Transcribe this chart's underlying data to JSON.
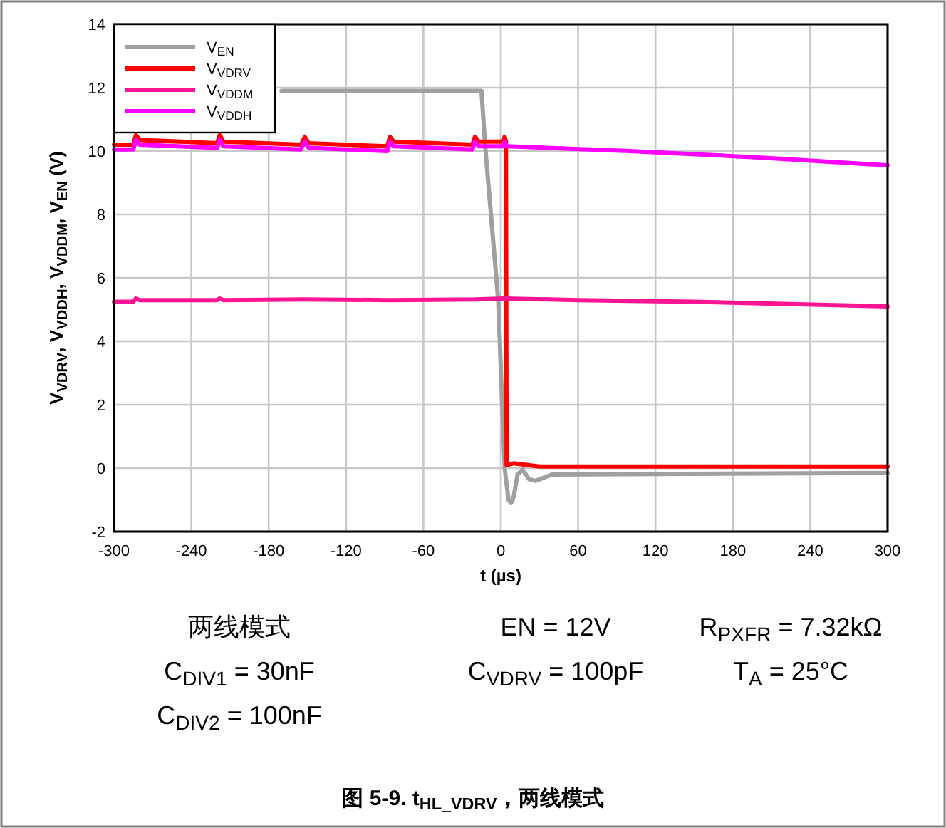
{
  "chart_data": {
    "type": "line",
    "xlabel": "t (µs)",
    "ylabel": "V$_{VDRV}$, V$_{VDDH}$, V$_{VDDM}$, V$_{EN}$ (V)",
    "xlim": [
      -300,
      300
    ],
    "ylim": [
      -2,
      14
    ],
    "xticks": [
      -300,
      -240,
      -180,
      -120,
      -60,
      0,
      60,
      120,
      180,
      240,
      300
    ],
    "yticks": [
      -2,
      0,
      2,
      4,
      6,
      8,
      10,
      12,
      14
    ],
    "grid": true,
    "legend": "top left",
    "marker": "none",
    "line_style": "solid",
    "series": [
      {
        "name": "V$_{EN}$",
        "color": "#a0a0a0",
        "x": [
          -170,
          -15,
          -12,
          -2,
          3,
          6,
          8,
          10,
          13,
          17,
          22,
          27,
          40,
          300
        ],
        "values": [
          11.9,
          11.9,
          10.1,
          5.3,
          0,
          -1.0,
          -1.1,
          -0.9,
          -0.2,
          -0.05,
          -0.35,
          -0.4,
          -0.2,
          -0.15
        ]
      },
      {
        "name": "V$_{VDRV}$",
        "color": "#ff0000",
        "x": [
          -300,
          -285,
          -283,
          -280,
          -220,
          -218,
          -215,
          -155,
          -152,
          -149,
          -88,
          -86,
          -83,
          -22,
          -20,
          -17,
          2,
          3,
          4,
          4.5,
          10,
          30,
          300
        ],
        "values": [
          10.2,
          10.2,
          10.5,
          10.35,
          10.25,
          10.5,
          10.3,
          10.2,
          10.45,
          10.25,
          10.15,
          10.45,
          10.3,
          10.2,
          10.45,
          10.3,
          10.3,
          10.45,
          10.3,
          0.1,
          0.15,
          0.05,
          0.05
        ]
      },
      {
        "name": "V$_{VDDM}$",
        "color": "#ff1493",
        "x": [
          -300,
          -285,
          -283,
          -280,
          -220,
          -218,
          -215,
          -152,
          -86,
          -20,
          3,
          60,
          150,
          300
        ],
        "values": [
          5.25,
          5.25,
          5.35,
          5.3,
          5.3,
          5.35,
          5.3,
          5.32,
          5.3,
          5.32,
          5.35,
          5.3,
          5.25,
          5.1
        ]
      },
      {
        "name": "V$_{VDDH}$",
        "color": "#ff00ff",
        "x": [
          -300,
          -285,
          -283,
          -280,
          -220,
          -218,
          -215,
          -155,
          -152,
          -149,
          -88,
          -86,
          -83,
          -22,
          -20,
          -17,
          2,
          3,
          5,
          100,
          200,
          300
        ],
        "values": [
          10.05,
          10.05,
          10.35,
          10.2,
          10.1,
          10.35,
          10.15,
          10.05,
          10.3,
          10.1,
          10.0,
          10.3,
          10.15,
          10.05,
          10.3,
          10.15,
          10.15,
          10.3,
          10.15,
          10.0,
          9.8,
          9.55
        ]
      }
    ],
    "annotations": [
      "两线模式",
      "EN = 12V",
      "R$_{PXFR}$ = 7.32kΩ",
      "C$_{DIV1}$ = 30nF",
      "C$_{VDRV}$ = 100pF",
      "T$_{A}$ = 25°C",
      "C$_{DIV2}$ = 100nF",
      "图 5-9. t$_{HL_VDRV}$，两线模式"
    ]
  }
}
